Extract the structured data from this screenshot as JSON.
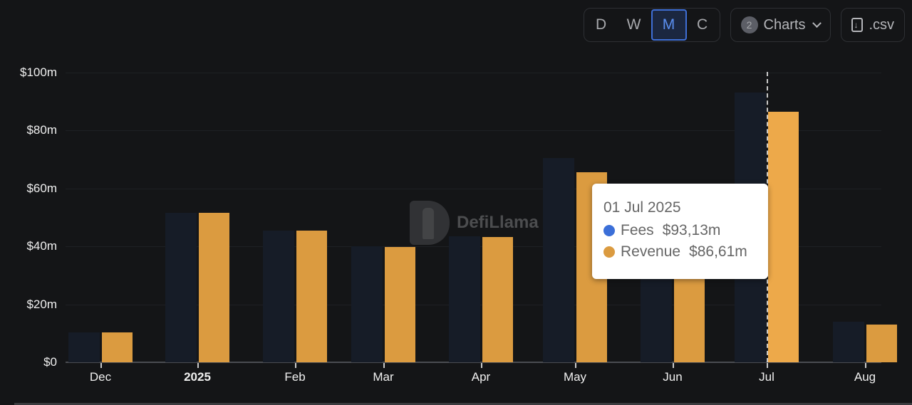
{
  "toolbar": {
    "intervals": [
      {
        "label": "D",
        "active": false
      },
      {
        "label": "W",
        "active": false
      },
      {
        "label": "M",
        "active": true
      },
      {
        "label": "C",
        "active": false
      }
    ],
    "charts_count": "2",
    "charts_label": "Charts",
    "csv_label": ".csv"
  },
  "watermark": {
    "text": "DefiLlama"
  },
  "tooltip": {
    "date": "01 Jul 2025",
    "rows": [
      {
        "label": "Fees",
        "value": "$93,13m",
        "color": "#3b6fd8"
      },
      {
        "label": "Revenue",
        "value": "$86,61m",
        "color": "#db9b40"
      }
    ]
  },
  "colors": {
    "fees": "#161c27",
    "revenue": "#db9b40",
    "revenue_highlight": "#eda94a",
    "fees_legend": "#3b6fd8"
  },
  "chart_data": {
    "type": "bar",
    "title": "",
    "xlabel": "",
    "ylabel": "",
    "categories": [
      "Dec",
      "2025",
      "Feb",
      "Mar",
      "Apr",
      "May",
      "Jun",
      "Jul",
      "Aug"
    ],
    "series": [
      {
        "name": "Fees",
        "values": [
          10.3,
          51.6,
          45.5,
          40.0,
          43.5,
          70.5,
          35.0,
          93.13,
          14.0
        ]
      },
      {
        "name": "Revenue",
        "values": [
          10.3,
          51.6,
          45.5,
          39.8,
          43.2,
          65.6,
          33.0,
          86.61,
          13.0
        ]
      }
    ],
    "yticks": [
      "$0",
      "$20m",
      "$40m",
      "$60m",
      "$80m",
      "$100m"
    ],
    "ylim": [
      0,
      100
    ],
    "unit": "$m",
    "grid": true,
    "legend": "tooltip",
    "highlighted": {
      "category": "Jul",
      "date": "01 Jul 2025"
    }
  }
}
